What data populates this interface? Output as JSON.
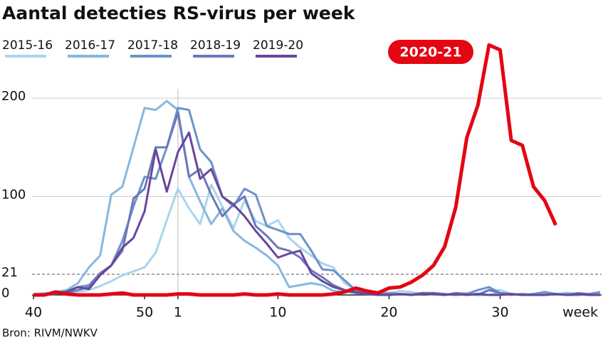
{
  "chart_data": {
    "type": "line",
    "title": "Aantal detecties RS-virus per week",
    "source": "Bron: RIVM/NWKV",
    "x_label": "week",
    "categories": [
      "40",
      null,
      null,
      null,
      null,
      null,
      null,
      null,
      null,
      null,
      "50",
      null,
      null,
      "1",
      null,
      null,
      null,
      null,
      null,
      null,
      null,
      null,
      "10",
      null,
      null,
      null,
      null,
      null,
      null,
      null,
      null,
      null,
      "20",
      null,
      null,
      null,
      null,
      null,
      null,
      null,
      null,
      null,
      "30",
      null,
      null,
      null,
      null,
      null,
      null,
      null,
      null,
      null
    ],
    "vline": "1",
    "ylim": [
      0,
      260
    ],
    "yticks": [
      0,
      21,
      100,
      200
    ],
    "hline": 21,
    "series": [
      {
        "name": "2015-16",
        "color": "#a9d5ef",
        "values": [
          1,
          2,
          2,
          2,
          3,
          5,
          9,
          14,
          20,
          24,
          28,
          43,
          76,
          108,
          88,
          72,
          112,
          90,
          68,
          96,
          75,
          70,
          76,
          58,
          48,
          40,
          32,
          28,
          12,
          5,
          4,
          2,
          2,
          4,
          3,
          1,
          2,
          0,
          2,
          2,
          1,
          5,
          5,
          1,
          0,
          1,
          0,
          1,
          2,
          1,
          0,
          1
        ]
      },
      {
        "name": "2016-17",
        "color": "#86b8de",
        "values": [
          1,
          1,
          3,
          5,
          12,
          28,
          40,
          102,
          110,
          150,
          190,
          188,
          197,
          188,
          120,
          95,
          72,
          88,
          65,
          55,
          48,
          40,
          30,
          8,
          10,
          12,
          10,
          4,
          3,
          2,
          1,
          2,
          0,
          1,
          1,
          2,
          0,
          1,
          0,
          1,
          0,
          0,
          2,
          1,
          0,
          1,
          1,
          0,
          2,
          1,
          0,
          1
        ]
      },
      {
        "name": "2017-18",
        "color": "#6c93c9",
        "values": [
          0,
          1,
          2,
          4,
          8,
          10,
          22,
          30,
          55,
          90,
          120,
          118,
          150,
          190,
          188,
          148,
          135,
          100,
          90,
          108,
          102,
          70,
          66,
          62,
          62,
          45,
          26,
          25,
          15,
          5,
          2,
          1,
          2,
          1,
          0,
          2,
          1,
          0,
          2,
          1,
          5,
          8,
          2,
          1,
          0,
          1,
          3,
          1,
          0,
          2,
          1,
          3
        ]
      },
      {
        "name": "2018-19",
        "color": "#6d78b9",
        "values": [
          0,
          0,
          1,
          2,
          5,
          8,
          22,
          30,
          45,
          98,
          108,
          150,
          150,
          185,
          120,
          128,
          102,
          80,
          92,
          100,
          70,
          60,
          48,
          45,
          38,
          25,
          18,
          10,
          5,
          2,
          1,
          1,
          0,
          1,
          0,
          2,
          2,
          1,
          0,
          1,
          0,
          5,
          2,
          0,
          1,
          0,
          0,
          1,
          0,
          0,
          1,
          0
        ]
      },
      {
        "name": "2019-20",
        "color": "#67479c",
        "values": [
          0,
          0,
          1,
          3,
          8,
          6,
          20,
          30,
          48,
          58,
          85,
          148,
          105,
          145,
          165,
          118,
          128,
          100,
          92,
          80,
          65,
          52,
          38,
          42,
          45,
          22,
          14,
          8,
          5,
          3,
          1,
          0,
          0,
          1,
          0,
          1,
          1,
          0,
          1,
          0,
          1,
          0,
          0,
          1,
          0,
          0,
          0,
          1,
          0,
          1,
          0,
          0
        ]
      },
      {
        "name": "2020-21",
        "color": "#e30613",
        "emphasis": true,
        "values": [
          0,
          0,
          3,
          1,
          0,
          0,
          0,
          1,
          2,
          0,
          0,
          0,
          0,
          1,
          1,
          0,
          0,
          0,
          0,
          1,
          0,
          0,
          1,
          0,
          0,
          0,
          0,
          1,
          3,
          7,
          4,
          2,
          7,
          8,
          13,
          20,
          30,
          49,
          89,
          160,
          193,
          254,
          249,
          157,
          152,
          110,
          96,
          71,
          null,
          null,
          null,
          null
        ]
      }
    ]
  }
}
